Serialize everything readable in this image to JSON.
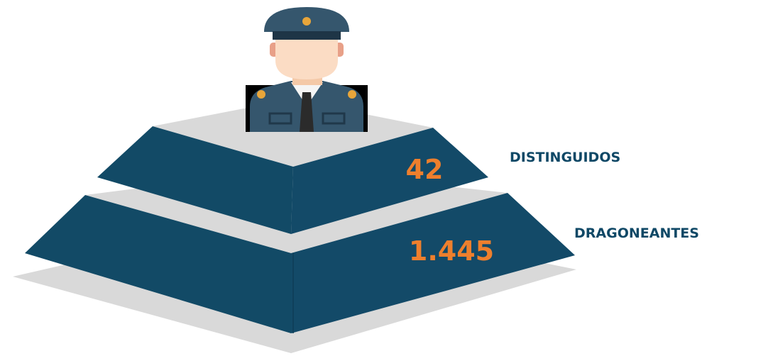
{
  "tiers": [
    {
      "label": "DISTINGUIDOS",
      "value": "42"
    },
    {
      "label": "DRAGONEANTES",
      "value": "1.445"
    }
  ]
}
